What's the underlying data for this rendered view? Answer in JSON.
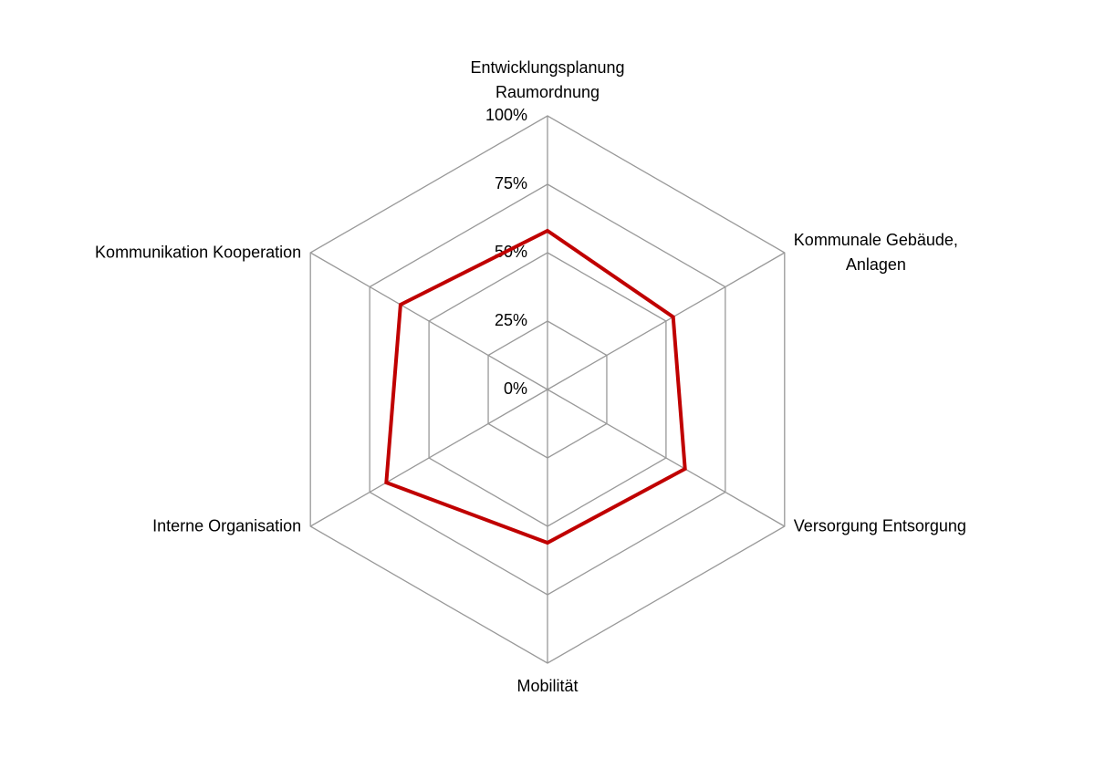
{
  "chart_data": {
    "type": "radar",
    "categories": [
      "Entwicklungsplanung\nRaumordnung",
      "Kommunale Gebäude,\nAnlagen",
      "Versorgung Entsorgung",
      "Mobilität",
      "Interne Organisation",
      "Kommunikation Kooperation"
    ],
    "values": [
      58,
      53,
      58,
      56,
      68,
      62
    ],
    "color": "#c00000",
    "ylim": [
      0,
      100
    ],
    "yticks": [
      {
        "value": 0,
        "label": "0%"
      },
      {
        "value": 25,
        "label": "25%"
      },
      {
        "value": 50,
        "label": "50%"
      },
      {
        "value": 75,
        "label": "75%"
      },
      {
        "value": 100,
        "label": "100%"
      }
    ],
    "grid": true
  }
}
